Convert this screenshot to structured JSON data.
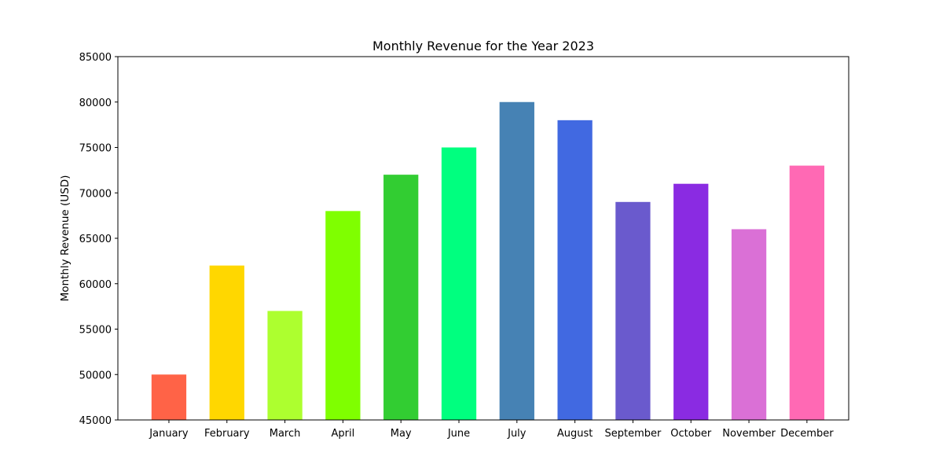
{
  "chart_data": {
    "type": "bar",
    "title": "Monthly Revenue for the Year 2023",
    "xlabel": "",
    "ylabel": "Monthly Revenue (USD)",
    "categories": [
      "January",
      "February",
      "March",
      "April",
      "May",
      "June",
      "July",
      "August",
      "September",
      "October",
      "November",
      "December"
    ],
    "values": [
      50000,
      62000,
      57000,
      68000,
      72000,
      75000,
      80000,
      78000,
      69000,
      71000,
      66000,
      73000
    ],
    "colors": [
      "#ff6347",
      "#ffd700",
      "#adff2f",
      "#7fff00",
      "#32cd32",
      "#00ff7f",
      "#4682b4",
      "#4169e1",
      "#6a5acd",
      "#8a2be2",
      "#da70d6",
      "#ff69b4"
    ],
    "ylim": [
      45000,
      85000
    ],
    "yticks": [
      45000,
      50000,
      55000,
      60000,
      65000,
      70000,
      75000,
      80000,
      85000
    ],
    "grid": false,
    "legend": "none"
  }
}
